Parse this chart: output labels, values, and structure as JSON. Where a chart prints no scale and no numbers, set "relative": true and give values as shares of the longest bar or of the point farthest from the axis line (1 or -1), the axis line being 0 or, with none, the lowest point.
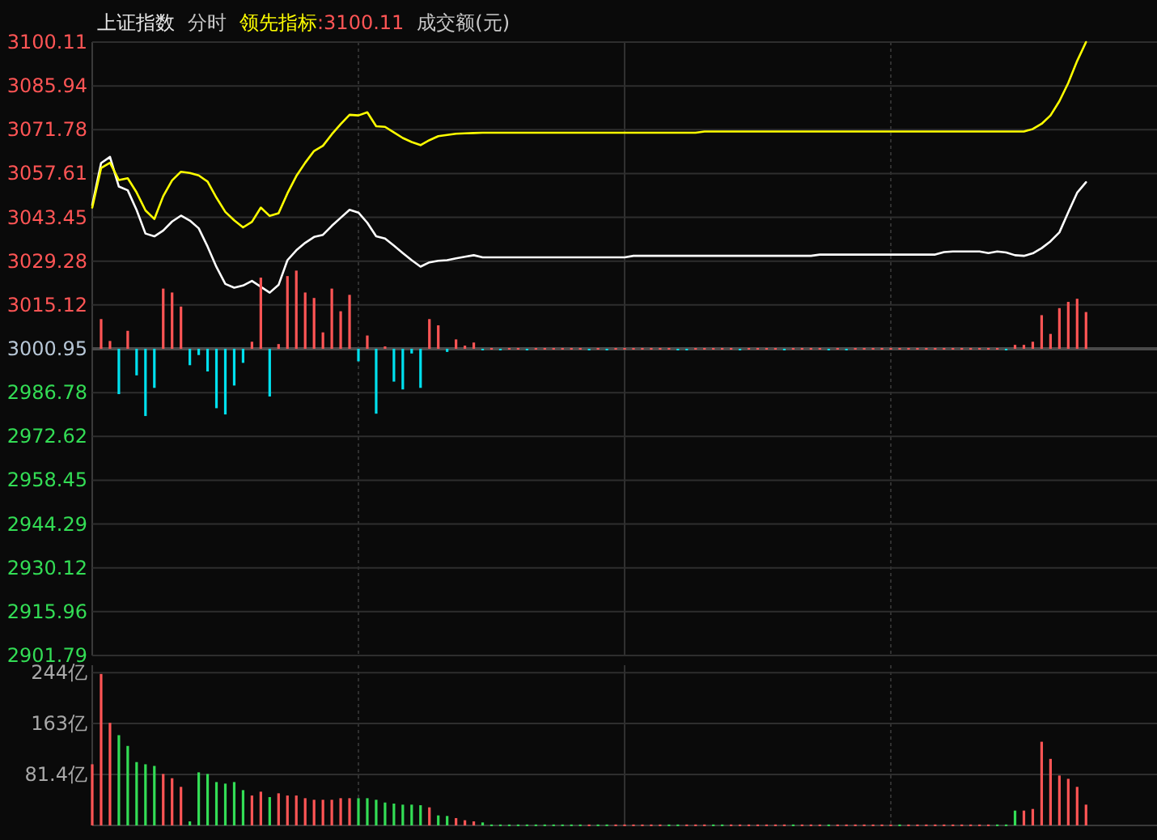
{
  "chart_data": [
    {
      "type": "line",
      "title": "上证指数",
      "annotations": [
        "分时",
        ":3100.11",
        "成交额(元)"
      ],
      "categories": [
        null,
        null,
        null,
        null,
        null,
        null,
        null,
        null,
        null,
        null,
        null,
        null,
        null,
        null,
        null,
        null,
        null,
        null,
        null,
        null,
        null,
        null,
        null,
        null,
        null,
        null,
        null,
        null,
        null,
        null,
        null,
        null,
        null,
        null,
        null,
        null,
        null,
        null,
        null,
        null,
        null,
        null,
        null,
        null,
        null,
        null,
        null,
        null,
        null,
        null,
        null,
        null,
        null,
        null,
        null,
        null,
        null,
        null,
        null,
        null,
        null,
        null,
        null,
        null,
        null,
        null,
        null,
        null,
        null,
        null,
        null,
        null,
        null,
        null,
        null,
        null,
        null,
        null,
        null,
        null,
        null,
        null,
        null,
        null,
        null,
        null,
        null,
        null,
        null,
        null,
        null,
        null,
        null,
        null,
        null,
        null,
        null,
        null,
        null,
        null,
        null,
        null,
        null,
        null,
        null,
        null,
        null,
        null,
        null,
        null,
        null,
        null,
        null,
        null,
        null,
        null,
        null,
        null,
        null,
        null,
        null
      ],
      "ylim": [
        2901.79,
        3100.11
      ],
      "yticks": [
        2901.79,
        2915.96,
        2930.12,
        2944.29,
        2958.45,
        2972.62,
        2986.78,
        3000.95,
        3015.12,
        3029.28,
        3043.45,
        3057.61,
        3071.78,
        3085.94,
        3100.11
      ],
      "grid": true,
      "tick_labels": "y",
      "ref_lines": [
        {
          "axis": "y",
          "value": 3000.95,
          "color": "#4a4a4a"
        }
      ],
      "series": [
        {
          "color": "#ffffff",
          "values": [
            3047.4,
            3061.0,
            3063.0,
            3053.4,
            3052.2,
            3045.8,
            3038.2,
            3037.3,
            3039.2,
            3042.1,
            3044.0,
            3042.4,
            3039.9,
            3034.0,
            3027.4,
            3021.9,
            3020.7,
            3021.4,
            3022.9,
            3021.0,
            3019.1,
            3021.6,
            3029.6,
            3032.8,
            3035.2,
            3037.1,
            3037.8,
            3040.7,
            3043.3,
            3045.9,
            3045.0,
            3041.7,
            3037.3,
            3036.6,
            3034.3,
            3031.9,
            3029.6,
            3027.5,
            3028.9,
            3029.4,
            3029.6,
            3030.2,
            3030.7,
            3031.2,
            3030.5,
            3030.5,
            3030.5,
            3030.5,
            3030.5,
            3030.5,
            3030.5,
            3030.5,
            3030.5,
            3030.5,
            3030.5,
            3030.5,
            3030.5,
            3030.5,
            3030.5,
            3030.5,
            3030.5,
            3031.0,
            3031.0,
            3031.0,
            3031.0,
            3031.0,
            3031.0,
            3031.0,
            3031.0,
            3031.0,
            3031.0,
            3031.0,
            3031.0,
            3031.0,
            3031.0,
            3031.0,
            3031.0,
            3031.0,
            3031.0,
            3031.0,
            3031.0,
            3031.0,
            3031.4,
            3031.4,
            3031.4,
            3031.4,
            3031.4,
            3031.4,
            3031.4,
            3031.4,
            3031.4,
            3031.4,
            3031.4,
            3031.4,
            3031.4,
            3031.4,
            3032.2,
            3032.4,
            3032.4,
            3032.4,
            3032.4,
            3031.9,
            3032.4,
            3032.1,
            3031.2,
            3031.0,
            3031.8,
            3033.5,
            3035.7,
            3038.6,
            3045.1,
            3051.4,
            3054.8,
            null,
            null,
            null,
            null,
            null,
            null,
            null,
            null
          ]
        },
        {
          "name": "领先指标",
          "color": "#ffff00",
          "values": [
            3046.6,
            3059.4,
            3061.1,
            3055.5,
            3056.1,
            3051.5,
            3045.7,
            3042.9,
            3050.3,
            3055.4,
            3058.2,
            3057.8,
            3057.0,
            3055.0,
            3049.8,
            3045.2,
            3042.5,
            3040.2,
            3042.0,
            3046.6,
            3043.9,
            3044.8,
            3051.2,
            3056.8,
            3061.1,
            3064.9,
            3066.6,
            3070.3,
            3073.6,
            3076.6,
            3076.4,
            3077.4,
            3072.9,
            3072.7,
            3070.9,
            3069.1,
            3067.8,
            3066.8,
            3068.4,
            3069.7,
            3070.1,
            3070.5,
            3070.6,
            3070.7,
            3070.8,
            3070.8,
            3070.8,
            3070.8,
            3070.8,
            3070.8,
            3070.8,
            3070.8,
            3070.8,
            3070.8,
            3070.8,
            3070.8,
            3070.8,
            3070.8,
            3070.8,
            3070.8,
            3070.8,
            3070.8,
            3070.8,
            3070.8,
            3070.8,
            3070.8,
            3070.8,
            3070.8,
            3070.8,
            3071.2,
            3071.2,
            3071.2,
            3071.2,
            3071.2,
            3071.2,
            3071.2,
            3071.2,
            3071.2,
            3071.2,
            3071.2,
            3071.2,
            3071.2,
            3071.2,
            3071.2,
            3071.2,
            3071.2,
            3071.2,
            3071.2,
            3071.2,
            3071.2,
            3071.2,
            3071.2,
            3071.2,
            3071.2,
            3071.2,
            3071.2,
            3071.2,
            3071.2,
            3071.2,
            3071.2,
            3071.2,
            3071.2,
            3071.2,
            3071.2,
            3071.2,
            3071.2,
            3072.0,
            3073.7,
            3076.4,
            3081.0,
            3086.9,
            3094.0,
            3100.1,
            null,
            null,
            null,
            null,
            null,
            null,
            null,
            null
          ]
        }
      ]
    },
    {
      "type": "bar",
      "relative": true,
      "tick_labels": false,
      "categories": [
        null,
        null,
        null,
        null,
        null,
        null,
        null,
        null,
        null,
        null,
        null,
        null,
        null,
        null,
        null,
        null,
        null,
        null,
        null,
        null,
        null,
        null,
        null,
        null,
        null,
        null,
        null,
        null,
        null,
        null,
        null,
        null,
        null,
        null,
        null,
        null,
        null,
        null,
        null,
        null,
        null,
        null,
        null,
        null,
        null,
        null,
        null,
        null,
        null,
        null,
        null,
        null,
        null,
        null,
        null,
        null,
        null,
        null,
        null,
        null,
        null,
        null,
        null,
        null,
        null,
        null,
        null,
        null,
        null,
        null,
        null,
        null,
        null,
        null,
        null,
        null,
        null,
        null,
        null,
        null,
        null,
        null,
        null,
        null,
        null,
        null,
        null,
        null,
        null,
        null,
        null,
        null,
        null,
        null,
        null,
        null,
        null,
        null,
        null,
        null,
        null,
        null,
        null,
        null,
        null,
        null,
        null,
        null,
        null,
        null,
        null,
        null,
        null,
        null,
        null,
        null,
        null,
        null,
        null,
        null,
        null
      ],
      "values": [
        null,
        0.38,
        0.1,
        -0.58,
        0.23,
        -0.34,
        -0.86,
        -0.5,
        0.77,
        0.72,
        0.54,
        -0.21,
        -0.08,
        -0.29,
        -0.76,
        -0.84,
        -0.47,
        -0.18,
        0.09,
        0.91,
        -0.61,
        0.06,
        0.93,
        1,
        0.72,
        0.65,
        0.21,
        0.77,
        0.48,
        0.69,
        -0.16,
        0.17,
        -0.83,
        0.03,
        -0.42,
        -0.52,
        -0.06,
        -0.5,
        0.38,
        0.3,
        -0.04,
        0.12,
        0.04,
        0.08,
        -0.01,
        0.01,
        -0.01,
        0.01,
        0.01,
        -0.01,
        0.01,
        0.01,
        0.01,
        0.01,
        0.01,
        0.01,
        -0.01,
        0.01,
        -0.01,
        0.01,
        0.01,
        0.01,
        0.01,
        0.01,
        0.01,
        0.01,
        -0.01,
        -0.01,
        0.01,
        0.01,
        0.01,
        0.01,
        0.01,
        -0.01,
        0.01,
        0.01,
        0.01,
        0.01,
        -0.01,
        0.01,
        0.01,
        0.01,
        0.01,
        -0.01,
        0.01,
        -0.01,
        0.01,
        0.01,
        0.01,
        0.01,
        0.01,
        0.01,
        0.01,
        0.01,
        0.01,
        0.01,
        0.01,
        0.01,
        0.01,
        0.01,
        0.01,
        0.01,
        0.01,
        -0.01,
        0.05,
        0.05,
        0.09,
        0.43,
        0.19,
        0.52,
        0.6,
        0.64,
        0.47,
        null,
        null,
        null,
        null,
        null,
        null,
        null,
        null
      ],
      "colors": [
        null,
        "#ff5555",
        "#ff5555",
        "#00e0ee",
        "#ff5555",
        "#00e0ee",
        "#00e0ee",
        "#00e0ee",
        "#ff5555",
        "#ff5555",
        "#ff5555",
        "#00e0ee",
        "#00e0ee",
        "#00e0ee",
        "#00e0ee",
        "#00e0ee",
        "#00e0ee",
        "#00e0ee",
        "#ff5555",
        "#ff5555",
        "#00e0ee",
        "#ff5555",
        "#ff5555",
        "#ff5555",
        "#ff5555",
        "#ff5555",
        "#ff5555",
        "#ff5555",
        "#ff5555",
        "#ff5555",
        "#00e0ee",
        "#ff5555",
        "#00e0ee",
        "#ff5555",
        "#00e0ee",
        "#00e0ee",
        "#00e0ee",
        "#00e0ee",
        "#ff5555",
        "#ff5555",
        "#00e0ee",
        "#ff5555",
        "#ff5555",
        "#ff5555",
        "#00e0ee",
        "#ff5555",
        "#00e0ee",
        "#ff5555",
        "#ff5555",
        "#00e0ee",
        "#ff5555",
        "#ff5555",
        "#ff5555",
        "#ff5555",
        "#ff5555",
        "#ff5555",
        "#00e0ee",
        "#ff5555",
        "#00e0ee",
        "#ff5555",
        "#ff5555",
        "#ff5555",
        "#ff5555",
        "#ff5555",
        "#ff5555",
        "#ff5555",
        "#00e0ee",
        "#00e0ee",
        "#ff5555",
        "#ff5555",
        "#ff5555",
        "#ff5555",
        "#ff5555",
        "#00e0ee",
        "#ff5555",
        "#ff5555",
        "#ff5555",
        "#ff5555",
        "#00e0ee",
        "#ff5555",
        "#ff5555",
        "#ff5555",
        "#ff5555",
        "#00e0ee",
        "#ff5555",
        "#00e0ee",
        "#ff5555",
        "#ff5555",
        "#ff5555",
        "#ff5555",
        "#ff5555",
        "#ff5555",
        "#ff5555",
        "#ff5555",
        "#ff5555",
        "#ff5555",
        "#ff5555",
        "#ff5555",
        "#ff5555",
        "#ff5555",
        "#ff5555",
        "#ff5555",
        "#ff5555",
        "#00e0ee",
        "#ff5555",
        "#ff5555",
        "#ff5555",
        "#ff5555",
        "#ff5555",
        "#ff5555",
        "#ff5555",
        "#ff5555",
        "#ff5555",
        null,
        null,
        null,
        null,
        null,
        null,
        null,
        null
      ]
    },
    {
      "type": "bar",
      "categories": [
        null,
        null,
        null,
        null,
        null,
        null,
        null,
        null,
        null,
        null,
        null,
        null,
        null,
        null,
        null,
        null,
        null,
        null,
        null,
        null,
        null,
        null,
        null,
        null,
        null,
        null,
        null,
        null,
        null,
        null,
        null,
        null,
        null,
        null,
        null,
        null,
        null,
        null,
        null,
        null,
        null,
        null,
        null,
        null,
        null,
        null,
        null,
        null,
        null,
        null,
        null,
        null,
        null,
        null,
        null,
        null,
        null,
        null,
        null,
        null,
        null,
        null,
        null,
        null,
        null,
        null,
        null,
        null,
        null,
        null,
        null,
        null,
        null,
        null,
        null,
        null,
        null,
        null,
        null,
        null,
        null,
        null,
        null,
        null,
        null,
        null,
        null,
        null,
        null,
        null,
        null,
        null,
        null,
        null,
        null,
        null,
        null,
        null,
        null,
        null,
        null,
        null,
        null,
        null,
        null,
        null,
        null,
        null,
        null,
        null,
        null,
        null,
        null,
        null,
        null,
        null,
        null,
        null,
        null,
        null,
        null
      ],
      "ylim": [
        0,
        256
      ],
      "yticks": [
        {
          "value": 81.4,
          "label": "81.4亿"
        },
        {
          "value": 163,
          "label": "163亿"
        },
        {
          "value": 244,
          "label": "244亿"
        }
      ],
      "grid": true,
      "tick_labels": "y",
      "values": [
        97.7,
        242,
        163.9,
        144.2,
        127.0,
        101.2,
        97.7,
        95.1,
        82.2,
        75.4,
        61.6,
        6.5,
        84.8,
        82.2,
        69.3,
        66.8,
        69.3,
        56.4,
        47.8,
        53.9,
        45.3,
        51.3,
        47.8,
        47.8,
        43.5,
        41.0,
        41.0,
        41.0,
        43.5,
        43.5,
        43.5,
        43.5,
        41.0,
        36.6,
        34.9,
        33.2,
        33.2,
        32.3,
        28.9,
        16.0,
        15.1,
        11.7,
        8.3,
        6.5,
        4.8,
        1.5,
        1.5,
        1.5,
        1.5,
        1.5,
        1.5,
        1.5,
        1.5,
        1.5,
        1.5,
        1.5,
        1.5,
        1.5,
        1.5,
        1.5,
        1.5,
        1.5,
        1.5,
        1.5,
        1.5,
        1.5,
        1.5,
        1.5,
        1.5,
        1.5,
        1.5,
        1.5,
        1.5,
        1.5,
        1.5,
        1.5,
        1.5,
        1.5,
        1.5,
        1.5,
        1.5,
        1.5,
        1.5,
        1.5,
        1.5,
        1.5,
        1.5,
        1.5,
        1.5,
        1.5,
        1.5,
        1.5,
        1.5,
        1.5,
        1.5,
        1.5,
        1.5,
        1.5,
        1.5,
        1.5,
        1.5,
        1.5,
        1.5,
        1.5,
        23.7,
        23.7,
        26.3,
        133.7,
        106.3,
        79.7,
        74.5,
        61.6,
        33.2,
        null,
        null,
        null,
        null,
        null,
        null,
        null,
        null
      ],
      "colors": [
        "#ff5555",
        "#ff5555",
        "#ff5555",
        "#33dd55",
        "#33dd55",
        "#33dd55",
        "#33dd55",
        "#33dd55",
        "#ff5555",
        "#ff5555",
        "#ff5555",
        "#33dd55",
        "#33dd55",
        "#33dd55",
        "#33dd55",
        "#33dd55",
        "#33dd55",
        "#33dd55",
        "#ff5555",
        "#ff5555",
        "#33dd55",
        "#ff5555",
        "#ff5555",
        "#ff5555",
        "#ff5555",
        "#ff5555",
        "#ff5555",
        "#ff5555",
        "#ff5555",
        "#ff5555",
        "#33dd55",
        "#33dd55",
        "#33dd55",
        "#33dd55",
        "#33dd55",
        "#33dd55",
        "#33dd55",
        "#33dd55",
        "#ff5555",
        "#33dd55",
        "#33dd55",
        "#ff5555",
        "#ff5555",
        "#ff5555",
        "#33dd55",
        "#33dd55",
        "#33dd55",
        "#33dd55",
        "#33dd55",
        "#33dd55",
        "#33dd55",
        "#33dd55",
        "#33dd55",
        "#33dd55",
        "#33dd55",
        "#33dd55",
        "#ff5555",
        "#33dd55",
        "#33dd55",
        "#ff5555",
        "#ff5555",
        "#ff5555",
        "#ff5555",
        "#ff5555",
        "#ff5555",
        "#33dd55",
        "#33dd55",
        "#ff5555",
        "#ff5555",
        "#ff5555",
        "#33dd55",
        "#33dd55",
        "#ff5555",
        "#ff5555",
        "#ff5555",
        "#ff5555",
        "#ff5555",
        "#ff5555",
        "#ff5555",
        "#33dd55",
        "#ff5555",
        "#ff5555",
        "#ff5555",
        "#33dd55",
        "#ff5555",
        "#ff5555",
        "#ff5555",
        "#ff5555",
        "#ff5555",
        "#ff5555",
        "#ff5555",
        "#33dd55",
        "#ff5555",
        "#ff5555",
        "#ff5555",
        "#ff5555",
        "#ff5555",
        "#ff5555",
        "#ff5555",
        "#ff5555",
        "#ff5555",
        "#ff5555",
        "#33dd55",
        "#33dd55",
        "#33dd55",
        "#ff5555",
        "#ff5555",
        "#ff5555",
        "#ff5555",
        "#ff5555",
        "#ff5555",
        "#ff5555",
        "#ff5555",
        null,
        null,
        null,
        null,
        null,
        null,
        null,
        null
      ]
    }
  ]
}
